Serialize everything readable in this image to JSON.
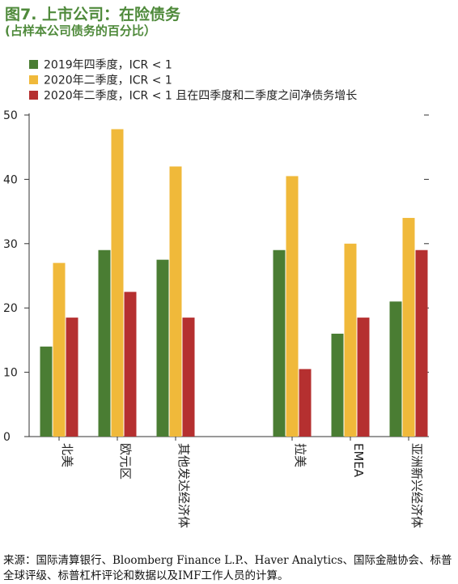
{
  "title": "图7. 上市公司：在险债务",
  "subtitle": "(占样本公司债务的百分比）",
  "colors": {
    "green": "#4a7d33",
    "yellow": "#f0b93a",
    "red": "#b53030",
    "axis": "#333333"
  },
  "chart_data": {
    "type": "bar",
    "title": "图7. 上市公司：在险债务",
    "subtitle": "(占样本公司债务的百分比）",
    "xlabel": "",
    "ylabel": "",
    "ylim": [
      0,
      50
    ],
    "yticks": [
      "0",
      "10",
      "20",
      "30",
      "40",
      "50"
    ],
    "grid": false,
    "legend_position": "top-left",
    "categories": [
      "北美",
      "欧元区",
      "其他发达经济体",
      "拉美",
      "EMEA",
      "亚洲新兴经济体"
    ],
    "series": [
      {
        "name": "2019年四季度，ICR < 1",
        "color": "#4a7d33",
        "values": [
          14,
          29,
          27.5,
          29,
          16,
          21
        ]
      },
      {
        "name": "2020年二季度，ICR < 1",
        "color": "#f0b93a",
        "values": [
          27,
          47.8,
          42,
          40.5,
          30,
          34
        ]
      },
      {
        "name": "2020年二季度，ICR < 1 且在四季度和二季度之间净债务增长",
        "color": "#b53030",
        "values": [
          18.5,
          22.5,
          18.5,
          10.5,
          18.5,
          29
        ]
      }
    ]
  },
  "source": "来源：国际清算银行、Bloomberg Finance L.P.、Haver Analytics、国际金融协会、标普全球评级、标普杠杆评论和数据以及IMF工作人员的计算。"
}
